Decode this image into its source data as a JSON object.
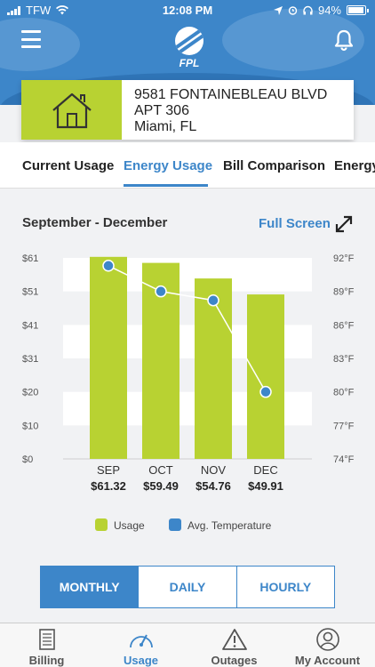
{
  "status_bar": {
    "carrier": "TFW",
    "time": "12:08 PM",
    "battery": "94%"
  },
  "header": {
    "logo_text": "FPL"
  },
  "address": {
    "line1": "9581 FONTAINEBLEAU BLVD",
    "line2": "APT 306",
    "line3": "Miami, FL"
  },
  "tabs": [
    {
      "label": "Current Usage"
    },
    {
      "label": "Energy Usage"
    },
    {
      "label": "Bill Comparison"
    },
    {
      "label": "Energy"
    }
  ],
  "active_tab": "Energy Usage",
  "range_title": "September - December",
  "full_screen_label": "Full Screen",
  "chart_data": {
    "type": "bar",
    "categories": [
      "SEP",
      "OCT",
      "NOV",
      "DEC"
    ],
    "value_labels": [
      "$61.32",
      "$59.49",
      "$54.76",
      "$49.91"
    ],
    "series": [
      {
        "name": "Usage",
        "type": "bar",
        "values": [
          61.32,
          59.49,
          54.76,
          49.91
        ],
        "color": "#b8d232"
      },
      {
        "name": "Avg. Temperature",
        "type": "line",
        "axis": "right",
        "values": [
          91.3,
          89,
          88.2,
          80
        ],
        "color": "#3d86c9"
      }
    ],
    "left_axis": {
      "ticks": [
        "$61",
        "$51",
        "$41",
        "$31",
        "$20",
        "$10",
        "$0"
      ],
      "ylim": [
        0,
        61
      ]
    },
    "right_axis": {
      "ticks": [
        "92°F",
        "89°F",
        "86°F",
        "83°F",
        "80°F",
        "77°F",
        "74°F"
      ],
      "ylim": [
        74,
        92
      ]
    },
    "grid": true
  },
  "legend": [
    {
      "label": "Usage",
      "color": "#b8d232"
    },
    {
      "label": "Avg. Temperature",
      "color": "#3d86c9"
    }
  ],
  "segments": [
    {
      "label": "MONTHLY",
      "active": true
    },
    {
      "label": "DAILY",
      "active": false
    },
    {
      "label": "HOURLY",
      "active": false
    }
  ],
  "bottom_nav": [
    {
      "label": "Billing",
      "icon": "document-icon"
    },
    {
      "label": "Usage",
      "icon": "gauge-icon"
    },
    {
      "label": "Outages",
      "icon": "warning-icon"
    },
    {
      "label": "My Account",
      "icon": "person-icon"
    }
  ],
  "active_nav": "Usage",
  "colors": {
    "brand_blue": "#3d86c9",
    "usage_green": "#b8d232"
  }
}
